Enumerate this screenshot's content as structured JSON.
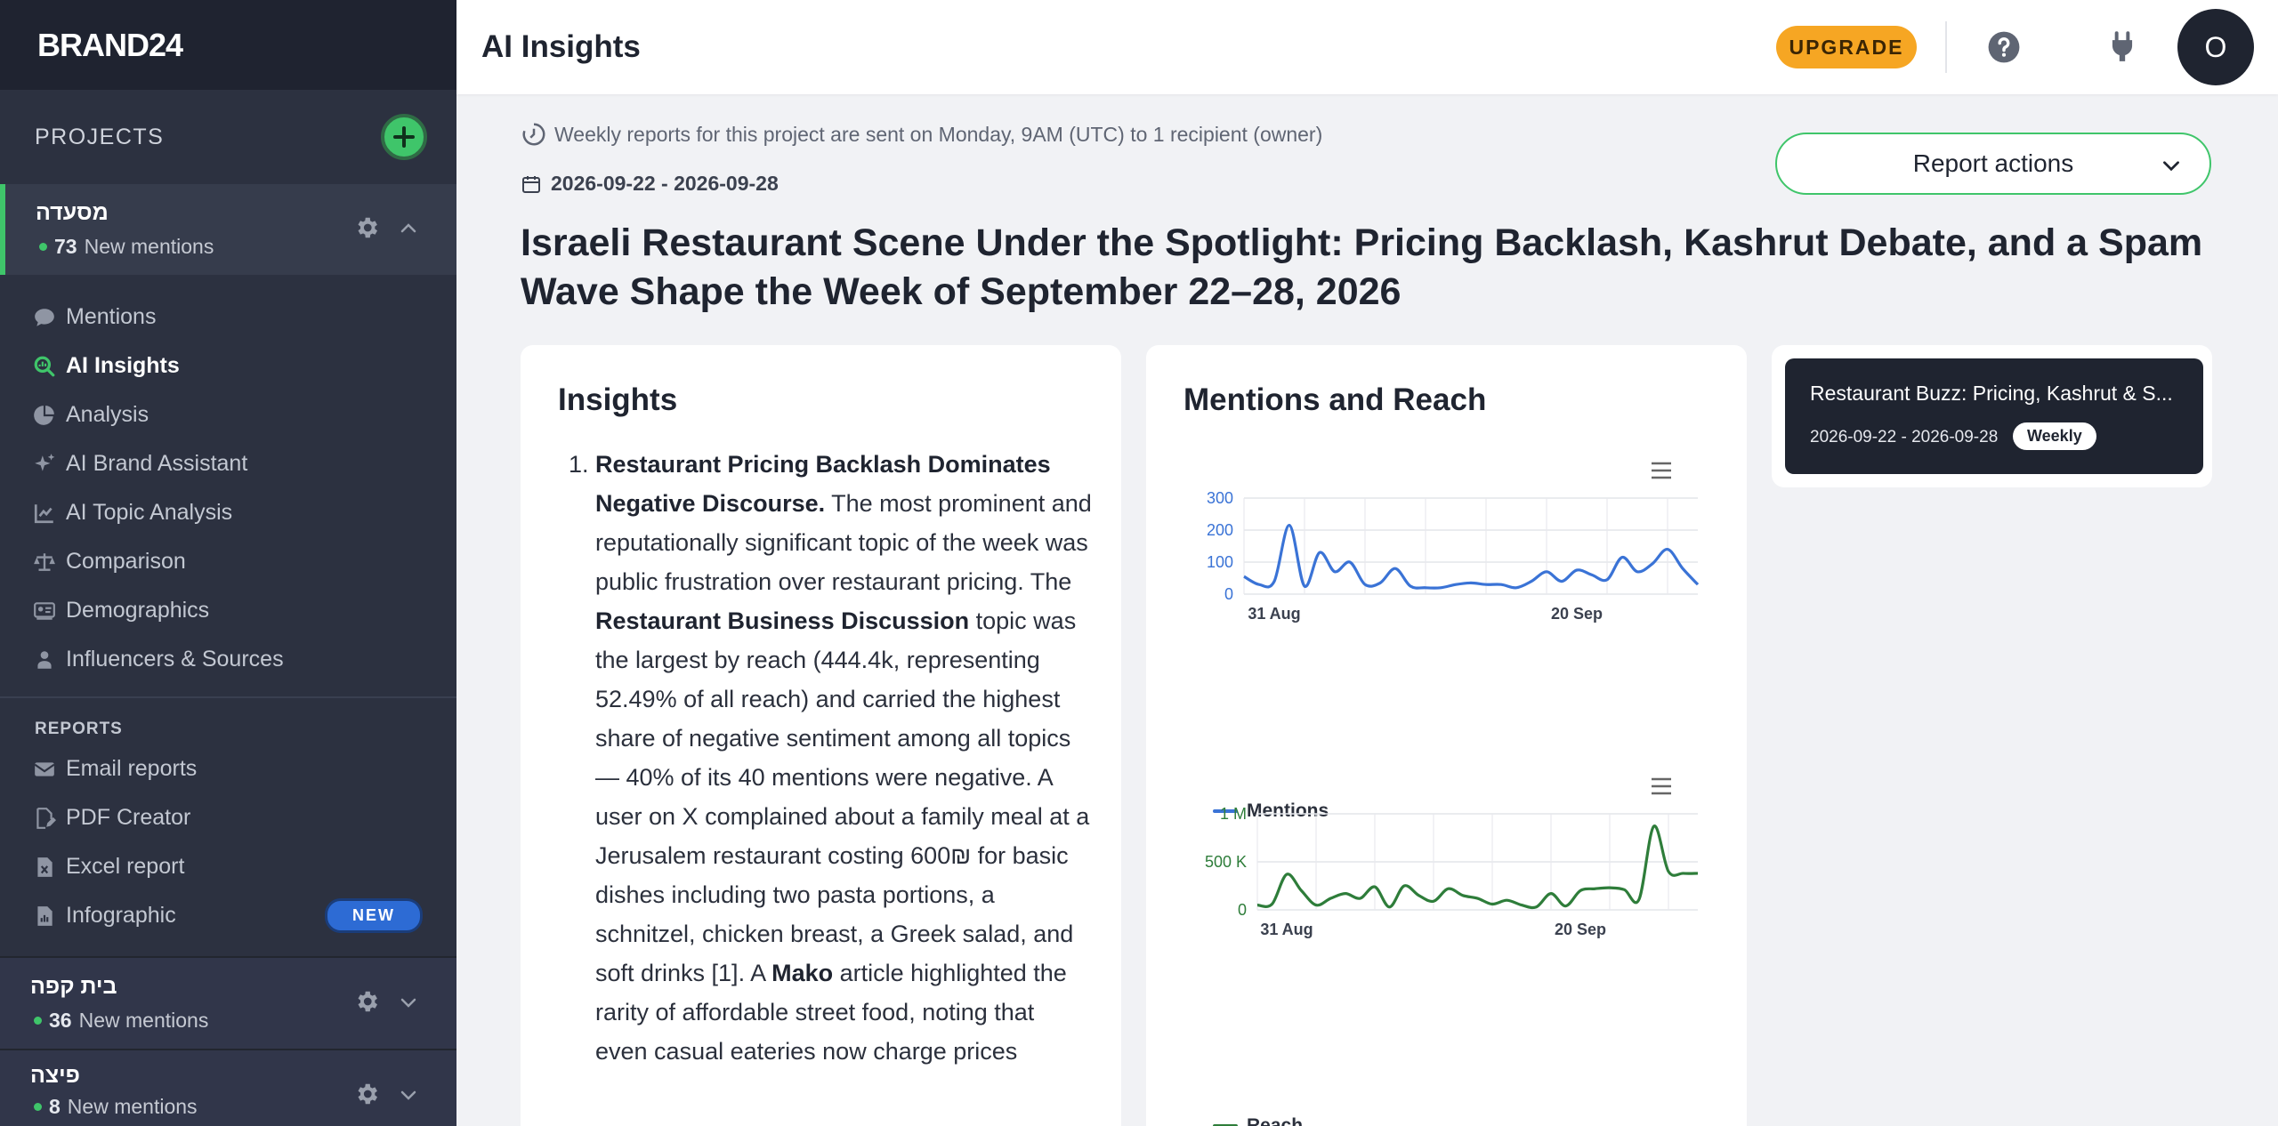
{
  "brand": "BRAND24",
  "header": {
    "title": "AI Insights",
    "upgrade_label": "UPGRADE",
    "avatar_initial": "O"
  },
  "sidebar": {
    "projects_title": "PROJECTS",
    "projects": [
      {
        "name": "מסעדה",
        "count": "73",
        "suffix": "New mentions"
      },
      {
        "name": "בית קפה",
        "count": "36",
        "suffix": "New mentions"
      },
      {
        "name": "פיצה",
        "count": "8",
        "suffix": "New mentions"
      }
    ],
    "nav": [
      {
        "label": "Mentions",
        "icon": "chat-bubble-icon"
      },
      {
        "label": "AI Insights",
        "icon": "ai-insights-icon"
      },
      {
        "label": "Analysis",
        "icon": "pie-chart-icon"
      },
      {
        "label": "AI Brand Assistant",
        "icon": "sparkle-icon"
      },
      {
        "label": "AI Topic Analysis",
        "icon": "line-chart-icon"
      },
      {
        "label": "Comparison",
        "icon": "scale-icon"
      },
      {
        "label": "Demographics",
        "icon": "demographics-icon"
      },
      {
        "label": "Influencers & Sources",
        "icon": "person-icon"
      }
    ],
    "reports_label": "REPORTS",
    "reports": [
      {
        "label": "Email reports",
        "icon": "envelope-icon"
      },
      {
        "label": "PDF Creator",
        "icon": "pdf-edit-icon"
      },
      {
        "label": "Excel report",
        "icon": "excel-file-icon"
      },
      {
        "label": "Infographic",
        "icon": "infographic-icon",
        "badge": "NEW"
      }
    ]
  },
  "report": {
    "weekly_note": "Weekly reports for this project are sent on Monday, 9AM (UTC) to 1 recipient (owner)",
    "date_range": "2026-09-22 - 2026-09-28",
    "actions_label": "Report actions",
    "headline": "Israeli Restaurant Scene Under the Spotlight: Pricing Backlash, Kashrut Debate, and a Spam Wave Shape the Week of September 22–28, 2026"
  },
  "insights": {
    "title": "Insights",
    "item_number": "1.",
    "item_title": "Restaurant Pricing Backlash Dominates Negative Discourse.",
    "text_1": " The most prominent and reputationally significant topic of the week was public frustration over restaurant pricing. The ",
    "bold_2": "Restaurant Business Discussion",
    "text_2": " topic was the largest by reach (444.4k, representing 52.49% of all reach) and carried the highest share of negative sentiment among all topics — 40% of its 40 mentions were negative. A user on X complained about a family meal at a Jerusalem restaurant costing 600₪ for basic dishes including two pasta portions, a schnitzel, chicken breast, a Greek salad, and soft drinks [1]. A ",
    "bold_3": "Mako",
    "text_3": " article highlighted the rarity of affordable street food, noting that even casual eateries now charge prices"
  },
  "charts_card": {
    "title": "Mentions and Reach"
  },
  "chart_data": [
    {
      "type": "line",
      "series": [
        {
          "name": "Mentions",
          "color": "#3a73d6"
        }
      ],
      "ylim": [
        0,
        300
      ],
      "yticks": [
        "0",
        "100",
        "200",
        "300"
      ],
      "x_ticks": [
        "31 Aug",
        "20 Sep"
      ],
      "x": [
        "Aug 29",
        "Aug 30",
        "Aug 31",
        "Sep 1",
        "Sep 2",
        "Sep 3",
        "Sep 4",
        "Sep 5",
        "Sep 6",
        "Sep 7",
        "Sep 8",
        "Sep 9",
        "Sep 10",
        "Sep 11",
        "Sep 12",
        "Sep 13",
        "Sep 14",
        "Sep 15",
        "Sep 16",
        "Sep 17",
        "Sep 18",
        "Sep 19",
        "Sep 20",
        "Sep 21",
        "Sep 22",
        "Sep 23",
        "Sep 24",
        "Sep 25",
        "Sep 26",
        "Sep 27",
        "Sep 28"
      ],
      "values": [
        55,
        30,
        40,
        215,
        25,
        130,
        70,
        100,
        30,
        35,
        80,
        25,
        20,
        20,
        30,
        35,
        30,
        30,
        20,
        40,
        70,
        40,
        75,
        60,
        45,
        115,
        70,
        95,
        140,
        80,
        30
      ]
    },
    {
      "type": "line",
      "series": [
        {
          "name": "Reach",
          "color": "#2e7d3a"
        }
      ],
      "ylim": [
        0,
        1000000
      ],
      "yticks": [
        "0",
        "500 K",
        "1 M"
      ],
      "x_ticks": [
        "31 Aug",
        "20 Sep"
      ],
      "x": [
        "Aug 29",
        "Aug 30",
        "Aug 31",
        "Sep 1",
        "Sep 2",
        "Sep 3",
        "Sep 4",
        "Sep 5",
        "Sep 6",
        "Sep 7",
        "Sep 8",
        "Sep 9",
        "Sep 10",
        "Sep 11",
        "Sep 12",
        "Sep 13",
        "Sep 14",
        "Sep 15",
        "Sep 16",
        "Sep 17",
        "Sep 18",
        "Sep 19",
        "Sep 20",
        "Sep 21",
        "Sep 22",
        "Sep 23",
        "Sep 24",
        "Sep 25",
        "Sep 26",
        "Sep 27",
        "Sep 28"
      ],
      "values": [
        50000,
        60000,
        370000,
        200000,
        50000,
        120000,
        170000,
        120000,
        240000,
        30000,
        250000,
        150000,
        90000,
        220000,
        150000,
        120000,
        60000,
        100000,
        50000,
        30000,
        170000,
        40000,
        200000,
        220000,
        230000,
        210000,
        110000,
        870000,
        400000,
        380000,
        380000
      ]
    }
  ],
  "side_reports": [
    {
      "title": "Restaurant Buzz: Pricing, Kashrut & S...",
      "date": "2026-09-22 - 2026-09-28",
      "badge": "Weekly"
    }
  ]
}
